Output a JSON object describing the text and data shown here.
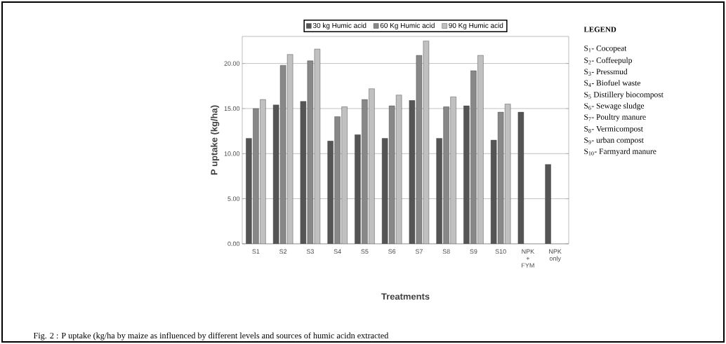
{
  "chart_data": {
    "type": "bar",
    "xlabel": "Treatments",
    "ylabel": "P uptake (kg/ha)",
    "categories": [
      "S1",
      "S2",
      "S3",
      "S4",
      "S5",
      "S6",
      "S7",
      "S8",
      "S9",
      "S10",
      "NPK + FYM",
      "NPK only"
    ],
    "series": [
      {
        "name": "30 kg Humic acid",
        "color": "#555555",
        "values": [
          11.7,
          15.4,
          15.8,
          11.4,
          12.1,
          11.7,
          15.9,
          11.7,
          15.3,
          11.5,
          14.6,
          8.8
        ]
      },
      {
        "name": "60 Kg Humic acid",
        "color": "#888888",
        "values": [
          15.0,
          19.8,
          20.3,
          14.1,
          16.0,
          15.3,
          20.9,
          15.2,
          19.2,
          14.6,
          null,
          null
        ]
      },
      {
        "name": "90 Kg Humic acid",
        "color": "#c0c0c0",
        "values": [
          16.0,
          21.0,
          21.6,
          15.2,
          17.2,
          16.5,
          22.5,
          16.3,
          20.9,
          15.5,
          null,
          null
        ]
      }
    ],
    "ylim": [
      0,
      23
    ],
    "yticks": [
      {
        "value": 0,
        "label": "0.00"
      },
      {
        "value": 5,
        "label": "5.00"
      },
      {
        "value": 10,
        "label": "10.00"
      },
      {
        "value": 15,
        "label": "15.00"
      },
      {
        "value": 20,
        "label": "20.00"
      }
    ],
    "grid": "y",
    "legend": "top",
    "annotations": [
      "LEGEND",
      "S$_{1}$- Cocopeat",
      "S$_{2}$- Coffeepulp",
      "S$_{3}$- Pressmud",
      "S$_{4}$- Biofuel waste",
      "S$_{5}$ Distillery biocompost",
      "S$_{6}$- Sewage sludge",
      "S$_{7}$- Poultry manure",
      "S$_{8}$- Vermicompost",
      "S$_{9}$- urban compost",
      "S$_{10}$- Farmyard manure",
      "Fig. 2 : P uptake (kg/ha by maize as influenced by different levels and sources of humic acidn extracted"
    ]
  }
}
